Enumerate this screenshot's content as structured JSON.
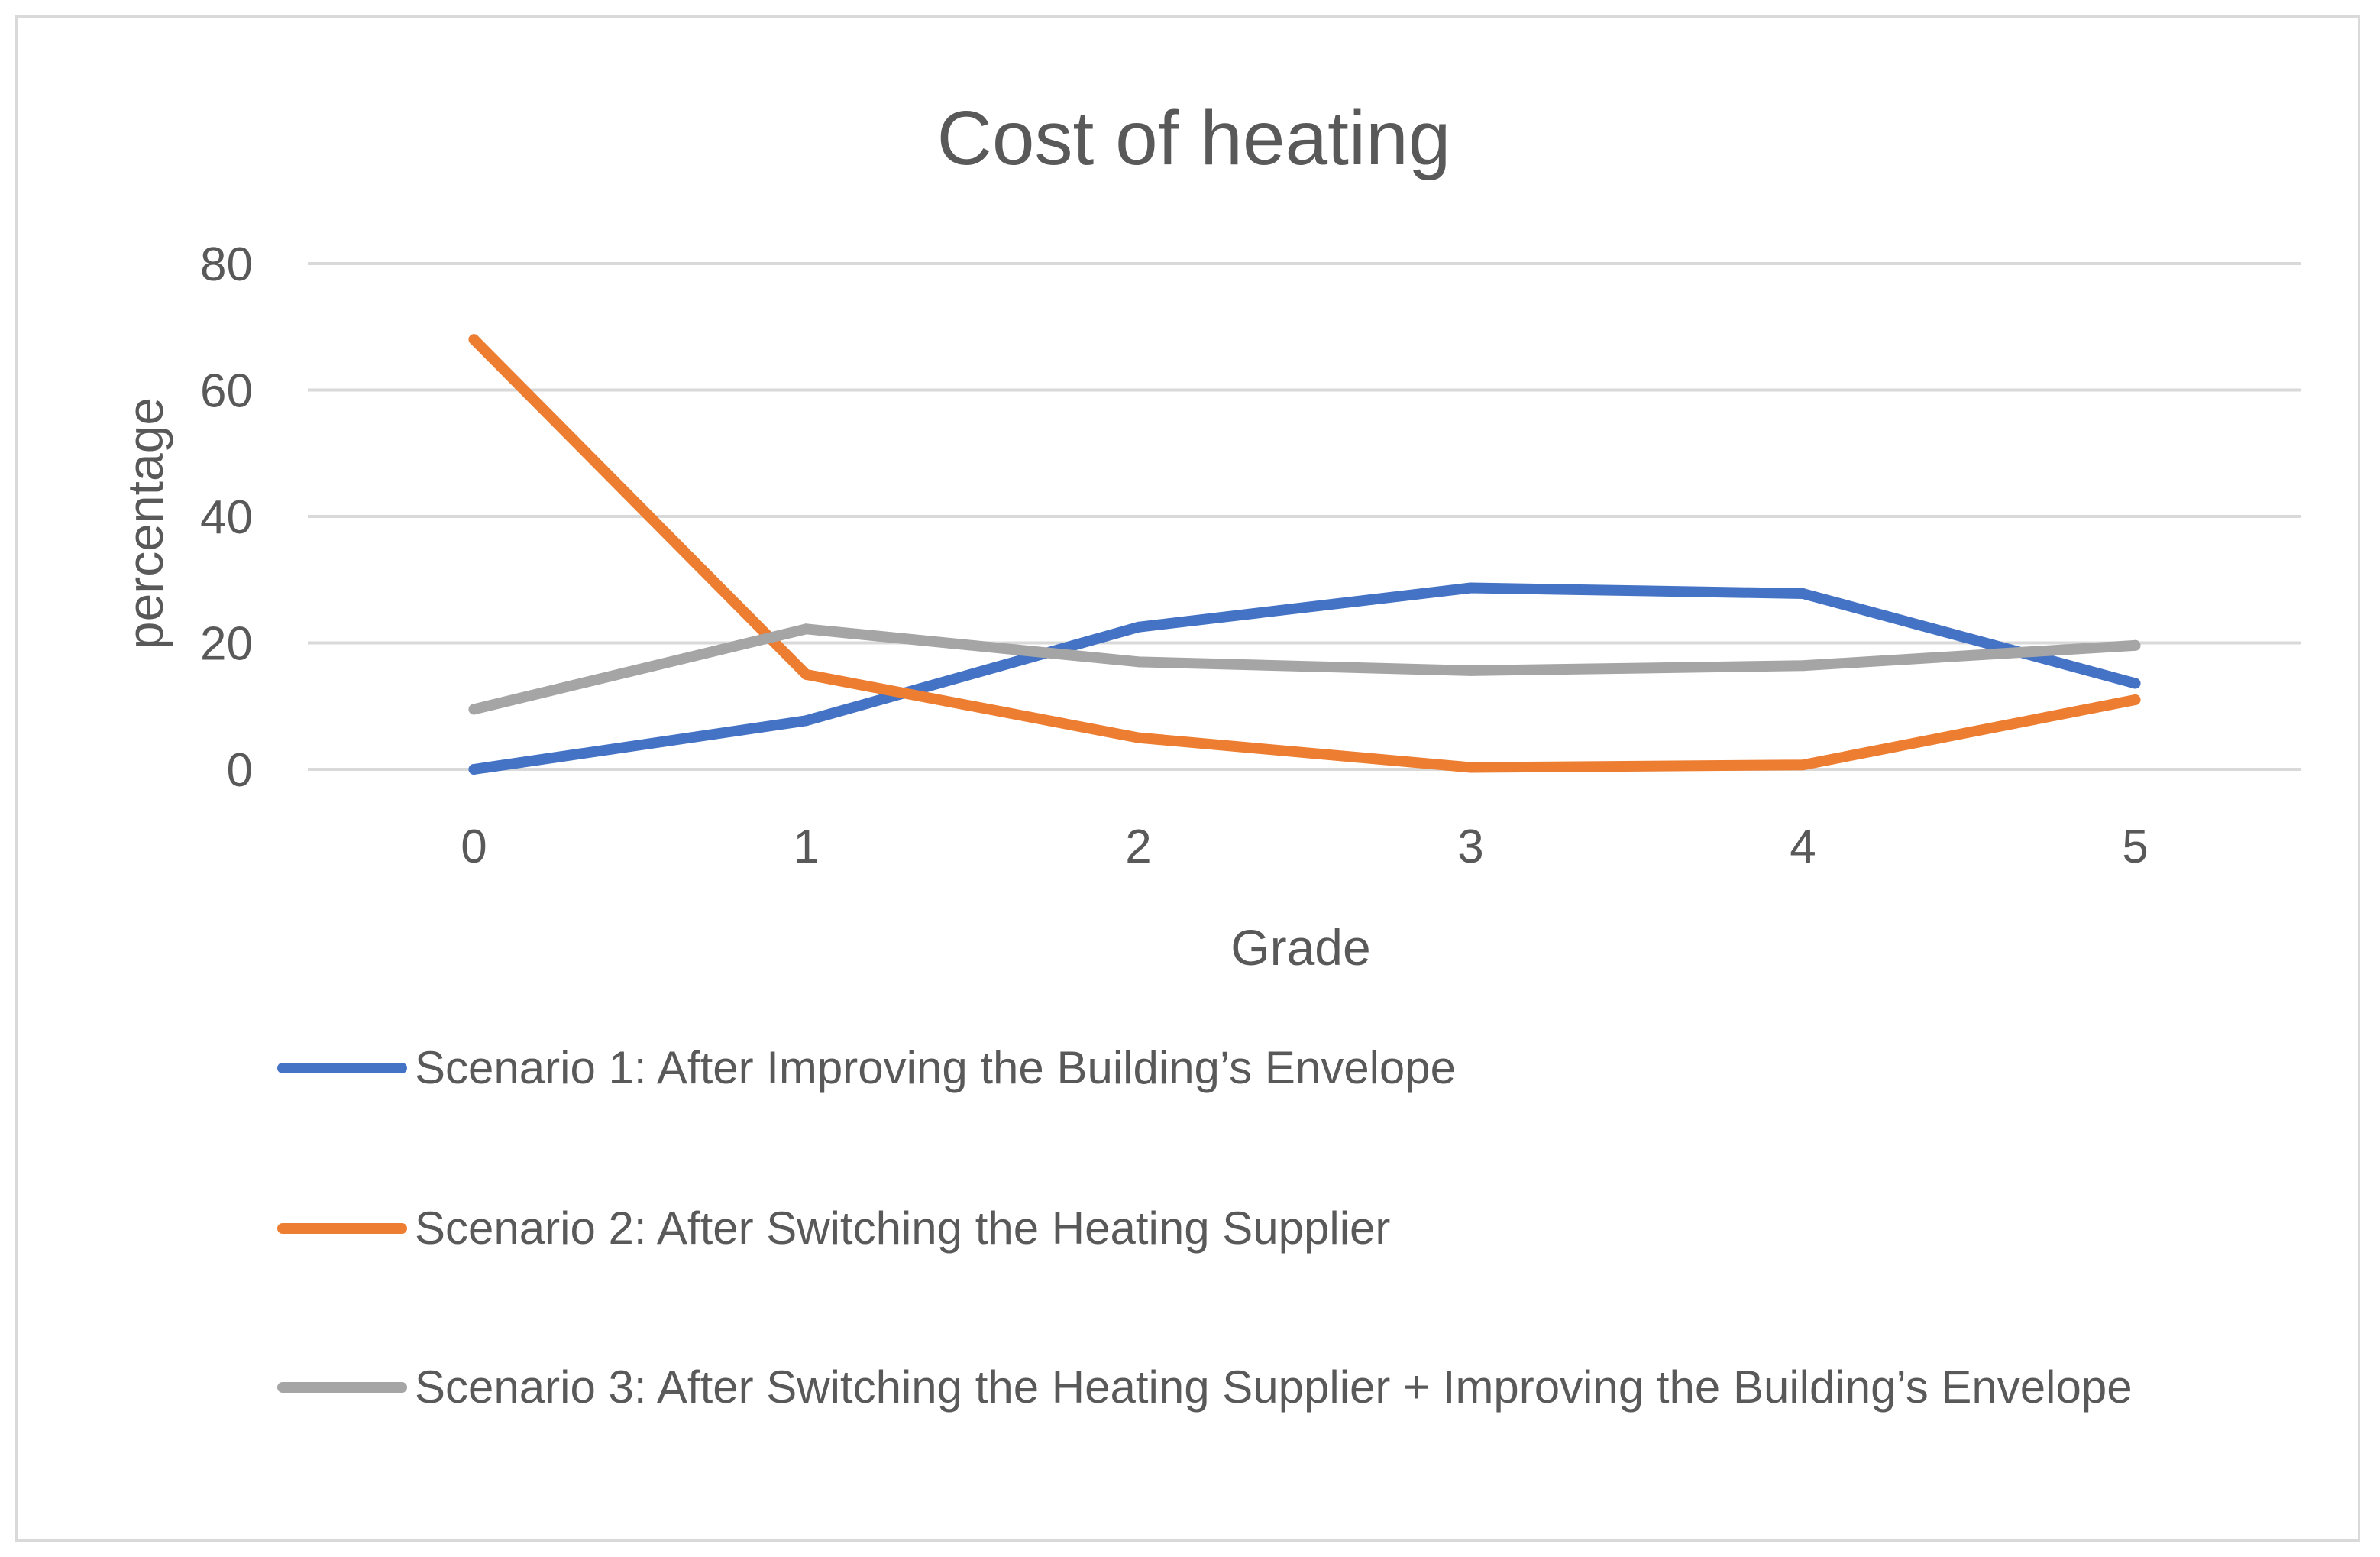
{
  "chart_data": {
    "type": "line",
    "title": "Cost of heating",
    "xlabel": "Grade",
    "ylabel": "percentage",
    "categories": [
      "0",
      "1",
      "2",
      "3",
      "4",
      "5"
    ],
    "ylim": [
      0,
      80
    ],
    "yticks": [
      "0",
      "20",
      "40",
      "60",
      "80"
    ],
    "grid": true,
    "legend_position": "bottom",
    "series": [
      {
        "name": "Scenario 1: After Improving the Building’s Envelope",
        "color": "#4472C4",
        "values": [
          0,
          7.7,
          22.5,
          28.7,
          27.8,
          13.6
        ]
      },
      {
        "name": "Scenario 2: After Switching the Heating Supplier",
        "color": "#ED7D31",
        "values": [
          68,
          15,
          5,
          0.3,
          0.7,
          11
        ]
      },
      {
        "name": "Scenario 3: After Switching the Heating Supplier + Improving the Building’s Envelope",
        "color": "#A5A5A5",
        "values": [
          9.5,
          22.2,
          17,
          15.6,
          16.4,
          19.6
        ]
      }
    ]
  }
}
